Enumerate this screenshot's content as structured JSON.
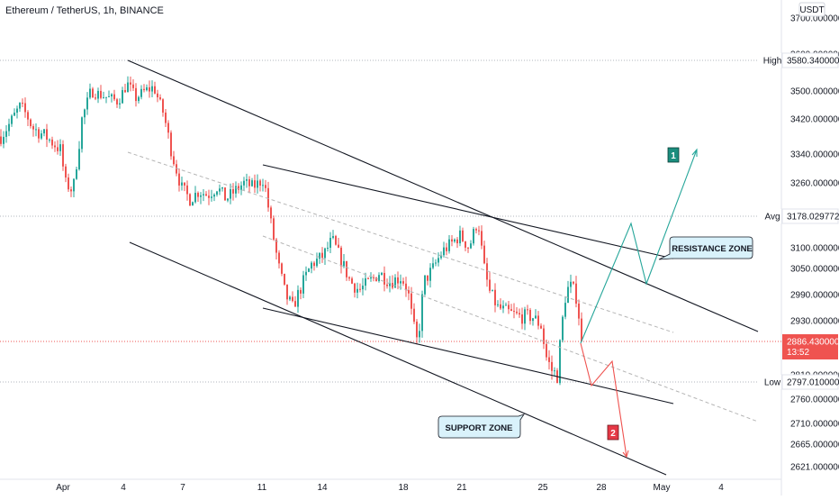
{
  "header": {
    "title": "Ethereum / TetherUS, 1h, BINANCE"
  },
  "axis": {
    "currency": "USDT",
    "ticks": [
      "3700.000000",
      "3600.000000",
      "3500.000000",
      "3420.000000",
      "3340.000000",
      "3260.000000",
      "3100.000000",
      "3050.000000",
      "2990.000000",
      "2930.000000",
      "2810.000000",
      "2760.000000",
      "2710.000000",
      "2665.000000",
      "2621.000000"
    ],
    "x_ticks": [
      "Apr",
      "4",
      "7",
      "11",
      "14",
      "18",
      "21",
      "25",
      "28",
      "May",
      "4"
    ]
  },
  "markers": {
    "high": {
      "label": "High",
      "value": "3580.340000"
    },
    "avg": {
      "label": "Avg",
      "value": "3178.029772"
    },
    "last": {
      "value": "2886.430000",
      "countdown": "13:52"
    },
    "low": {
      "label": "Low",
      "value": "2797.010000"
    }
  },
  "annotations": {
    "resistance": "RESISTANCE ZONE",
    "support": "SUPPORT ZONE",
    "scenario1": "1",
    "scenario2": "2"
  },
  "colors": {
    "up": "#26a69a",
    "down": "#ef5350",
    "line": "#131722",
    "label_box": "#d9f2fb",
    "badge1": "#1b8e7e",
    "badge2": "#e53946",
    "last_price": "#ef5350"
  },
  "chart_data": {
    "type": "candlestick",
    "title": "Ethereum / TetherUS, 1h, BINANCE",
    "x_axis": [
      "Apr",
      "4",
      "7",
      "11",
      "14",
      "18",
      "21",
      "25",
      "28",
      "May",
      "4"
    ],
    "y_axis_unit": "USDT",
    "key_levels": {
      "High": 3580.34,
      "Avg": 3178.029772,
      "Last": 2886.43,
      "Low": 2797.01
    },
    "approx_path": [
      {
        "x": "Apr",
        "y": 3370
      },
      {
        "x": "4",
        "y": 3520
      },
      {
        "x": "7",
        "y": 3220
      },
      {
        "x": "11",
        "y": 3270
      },
      {
        "x": "11-12",
        "y": 2960
      },
      {
        "x": "14",
        "y": 3020
      },
      {
        "x": "18",
        "y": 2860
      },
      {
        "x": "21",
        "y": 3170
      },
      {
        "x": "25",
        "y": 2790
      },
      {
        "x": "25-26",
        "y": 3020
      },
      {
        "x": "26",
        "y": 2886.43
      }
    ]
  }
}
